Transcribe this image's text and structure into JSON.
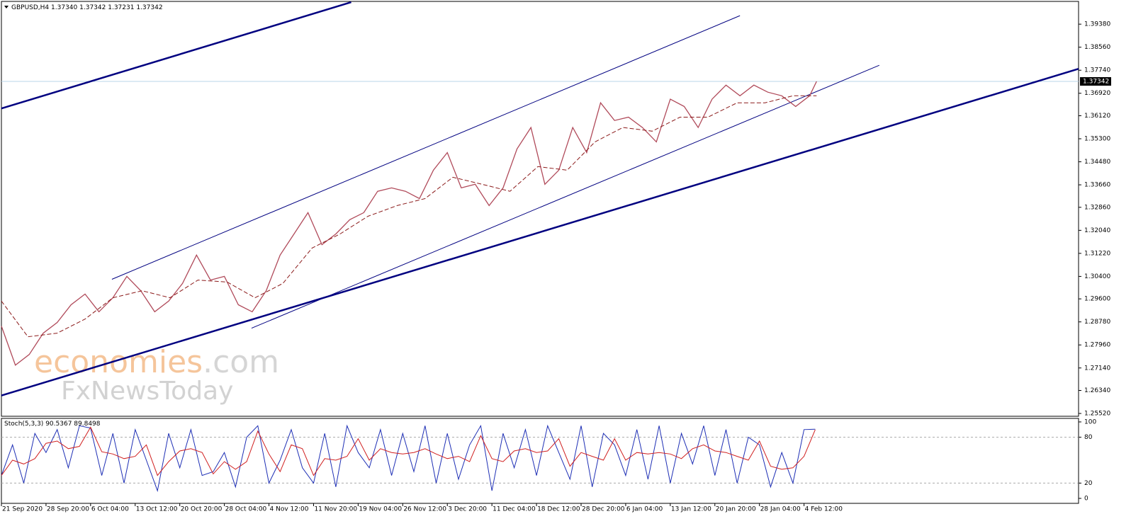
{
  "chart_data": [
    {
      "type": "line",
      "symbol": "GBPUSD,H4",
      "ohlc": [
        {
          "value": 1.3734,
          "label": "1.37340"
        },
        1.37342,
        1.37231,
        1.37342
      ],
      "x": [
        0,
        10,
        20,
        30,
        40,
        50,
        60,
        70,
        80,
        90,
        100,
        110,
        120,
        130,
        140,
        150,
        160,
        170,
        180,
        190,
        200,
        210,
        220,
        230,
        240,
        250,
        260,
        270,
        280,
        290,
        300,
        310,
        320,
        330,
        340,
        350,
        360,
        370,
        380,
        390,
        400,
        410,
        420,
        430,
        440,
        450,
        460,
        470,
        480,
        490,
        500,
        510,
        520,
        530,
        540,
        550,
        560,
        570,
        580,
        585
      ],
      "values": [
        1.2863,
        1.2724,
        1.2762,
        1.2838,
        1.2876,
        1.2939,
        1.2977,
        1.2914,
        1.2964,
        1.304,
        1.2989,
        1.2914,
        1.2952,
        1.3015,
        1.3116,
        1.3027,
        1.304,
        1.2939,
        1.2914,
        1.2989,
        1.3116,
        1.3191,
        1.3267,
        1.3153,
        1.3191,
        1.3242,
        1.3267,
        1.3343,
        1.3355,
        1.3343,
        1.3317,
        1.3418,
        1.3481,
        1.3355,
        1.3368,
        1.3292,
        1.3355,
        1.3494,
        1.357,
        1.3368,
        1.3418,
        1.357,
        1.3481,
        1.3658,
        1.3595,
        1.3607,
        1.357,
        1.3519,
        1.3671,
        1.3645,
        1.357,
        1.3671,
        1.3721,
        1.3683,
        1.3721,
        1.3696,
        1.3683,
        1.3645,
        1.3683,
        1.37342
      ],
      "color": "#b04a5a",
      "ma_x": [
        0,
        19,
        40,
        60,
        80,
        101,
        121,
        141,
        162,
        182,
        202,
        223,
        243,
        263,
        284,
        304,
        324,
        345,
        365,
        385,
        406,
        426,
        446,
        467,
        487,
        507,
        528,
        548,
        568,
        585
      ],
      "ma_values": [
        1.2952,
        1.2825,
        1.2838,
        1.2888,
        1.2964,
        1.2989,
        1.2964,
        1.3027,
        1.302,
        1.2964,
        1.3015,
        1.3141,
        1.3191,
        1.3254,
        1.3292,
        1.3317,
        1.3393,
        1.3368,
        1.3343,
        1.3431,
        1.3418,
        1.3519,
        1.357,
        1.3557,
        1.3607,
        1.3607,
        1.3658,
        1.3658,
        1.3683,
        1.3683
      ],
      "ma_color": "#8b1a1a",
      "current_price": 1.37342,
      "current_color": "#b8d4ea",
      "trend_lines": [
        {
          "x": [
            0,
            251
          ],
          "y": [
            1.36378,
            1.40162
          ],
          "color": "#000080",
          "width": 2.5
        },
        {
          "x": [
            79.3,
            530
          ],
          "y": [
            1.30297,
            1.39683
          ],
          "color": "#000080",
          "width": 1
        },
        {
          "x": [
            179.5,
            630
          ],
          "y": [
            1.28556,
            1.37917
          ],
          "color": "#000080",
          "width": 1
        },
        {
          "x": [
            0,
            773
          ],
          "y": [
            1.26159,
            1.3779
          ],
          "color": "#000080",
          "width": 2.5
        }
      ],
      "watermark": [
        "economies",
        ".com",
        "FxNewsToday"
      ],
      "xlim": [
        0,
        773
      ],
      "xticks": [
        {
          "value": 0,
          "label": "21 Sep 2020"
        },
        {
          "value": 32,
          "label": "28 Sep 20:00"
        },
        {
          "value": 64,
          "label": "6 Oct 04:00"
        },
        {
          "value": 96,
          "label": "13 Oct 12:00"
        },
        {
          "value": 128,
          "label": "20 Oct 20:00"
        },
        {
          "value": 160,
          "label": "28 Oct 04:00"
        },
        {
          "value": 192,
          "label": "4 Nov 12:00"
        },
        {
          "value": 224,
          "label": "11 Nov 20:00"
        },
        {
          "value": 256,
          "label": "19 Nov 04:00"
        },
        {
          "value": 288,
          "label": "26 Nov 12:00"
        },
        {
          "value": 320,
          "label": "3 Dec 20:00"
        },
        {
          "value": 352,
          "label": "11 Dec 04:00"
        },
        {
          "value": 384,
          "label": "18 Dec 12:00"
        },
        {
          "value": 416,
          "label": "28 Dec 20:00"
        },
        {
          "value": 448,
          "label": "6 Jan 04:00"
        },
        {
          "value": 480,
          "label": "13 Jan 12:00"
        },
        {
          "value": 512,
          "label": "20 Jan 20:00"
        },
        {
          "value": 544,
          "label": "28 Jan 04:00"
        },
        {
          "value": 576,
          "label": "4 Feb 12:00"
        }
      ],
      "ylim": [
        1.2542,
        1.4019
      ],
      "yticks": [
        {
          "value": 1.3938,
          "label": "1.39380"
        },
        {
          "value": 1.3856,
          "label": "1.38560"
        },
        {
          "value": 1.3774,
          "label": "1.37740"
        },
        {
          "value": 1.3692,
          "label": "1.36920"
        },
        {
          "value": 1.3612,
          "label": "1.36120"
        },
        {
          "value": 1.353,
          "label": "1.35300"
        },
        {
          "value": 1.3448,
          "label": "1.34480"
        },
        {
          "value": 1.3366,
          "label": "1.33660"
        },
        {
          "value": 1.3286,
          "label": "1.32860"
        },
        {
          "value": 1.3204,
          "label": "1.32040"
        },
        {
          "value": 1.3122,
          "label": "1.31220"
        },
        {
          "value": 1.304,
          "label": "1.30400"
        },
        {
          "value": 1.296,
          "label": "1.29600"
        },
        {
          "value": 1.2878,
          "label": "1.28780"
        },
        {
          "value": 1.2796,
          "label": "1.27960"
        },
        {
          "value": 1.2714,
          "label": "1.27140"
        },
        {
          "value": 1.2634,
          "label": "1.26340"
        },
        {
          "value": 1.2552,
          "label": "1.25520"
        }
      ]
    },
    {
      "type": "line",
      "title": "Stoch(5,3,3)",
      "x": [
        0,
        8,
        16,
        24,
        32,
        40,
        48,
        56,
        64,
        72,
        80,
        88,
        96,
        104,
        112,
        120,
        128,
        136,
        144,
        152,
        160,
        168,
        176,
        184,
        192,
        200,
        208,
        216,
        224,
        232,
        240,
        248,
        256,
        264,
        272,
        280,
        288,
        296,
        304,
        312,
        320,
        328,
        336,
        344,
        352,
        360,
        368,
        376,
        384,
        392,
        400,
        408,
        416,
        424,
        432,
        440,
        448,
        456,
        464,
        472,
        480,
        488,
        496,
        504,
        512,
        520,
        528,
        536,
        544,
        552,
        560,
        568,
        576,
        584
      ],
      "series": [
        {
          "color": "#1e2fb5",
          "values": [
            30,
            70,
            20,
            85,
            60,
            90,
            40,
            95,
            92,
            30,
            85,
            20,
            90,
            50,
            10,
            85,
            40,
            90,
            30,
            35,
            60,
            15,
            80,
            95,
            20,
            50,
            90,
            40,
            20,
            85,
            15,
            95,
            60,
            40,
            90,
            30,
            85,
            35,
            95,
            20,
            85,
            25,
            70,
            95,
            10,
            85,
            40,
            90,
            30,
            95,
            60,
            25,
            95,
            15,
            85,
            70,
            30,
            90,
            25,
            95,
            20,
            85,
            45,
            95,
            30,
            90,
            20,
            80,
            70,
            15,
            60,
            20,
            90,
            90.5367
          ]
        },
        {
          "color": "#d02020",
          "values": [
            30,
            50,
            45,
            52,
            72,
            75,
            65,
            68,
            93,
            61,
            58,
            52,
            55,
            70,
            30,
            48,
            62,
            65,
            60,
            32,
            48,
            38,
            48,
            88,
            58,
            35,
            70,
            65,
            30,
            52,
            50,
            55,
            78,
            50,
            65,
            60,
            58,
            60,
            65,
            58,
            52,
            55,
            48,
            82,
            52,
            48,
            62,
            65,
            60,
            62,
            78,
            42,
            60,
            55,
            50,
            78,
            50,
            60,
            58,
            60,
            58,
            52,
            65,
            70,
            62,
            60,
            55,
            50,
            75,
            42,
            38,
            40,
            55,
            89.8498
          ]
        }
      ],
      "ylim": [
        -6.5,
        104.6
      ],
      "yticks": [
        0,
        20,
        80,
        100
      ],
      "levels": [
        20,
        80
      ]
    }
  ]
}
